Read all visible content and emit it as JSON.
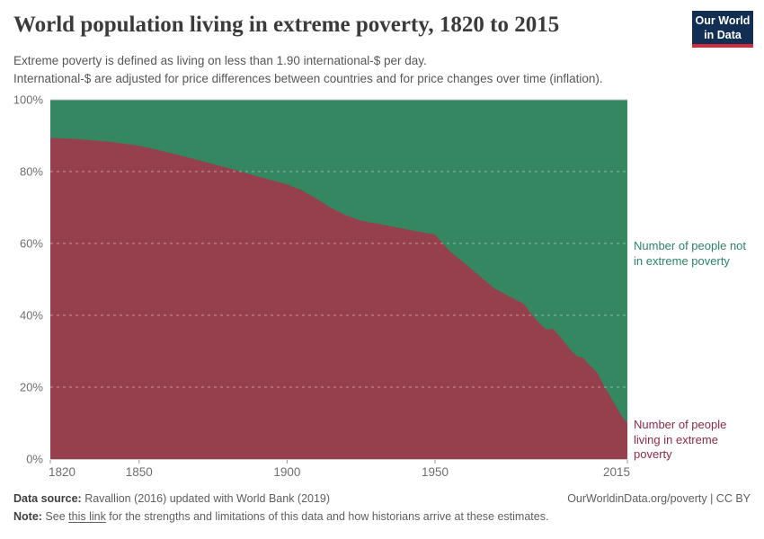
{
  "header": {
    "title": "World population living in extreme poverty, 1820 to 2015",
    "subtitle_line1": "Extreme poverty is defined as living on less than 1.90 international-$ per day.",
    "subtitle_line2": "International-$ are adjusted for price differences between countries and for price changes over time (inflation).",
    "logo_text": "Our World in Data"
  },
  "chart_data": {
    "type": "area",
    "stacked": true,
    "title": "World population living in extreme poverty, 1820 to 2015",
    "xlabel": "",
    "ylabel": "",
    "unit": "%",
    "xlim": [
      1820,
      2015
    ],
    "ylim": [
      0,
      100
    ],
    "grid": "dashed-horizontal",
    "legend_position": "right-annotations",
    "x": [
      1820,
      1830,
      1840,
      1850,
      1860,
      1870,
      1880,
      1890,
      1900,
      1905,
      1910,
      1915,
      1920,
      1925,
      1930,
      1935,
      1940,
      1945,
      1950,
      1955,
      1960,
      1965,
      1970,
      1975,
      1980,
      1982,
      1985,
      1987,
      1988,
      1990,
      1991,
      1993,
      1996,
      1998,
      2000,
      2002,
      2005,
      2007,
      2010,
      2013,
      2015
    ],
    "series": [
      {
        "name": "Number of people living in extreme poverty",
        "color": "#96404d",
        "label_color": "#8d2a45",
        "values": [
          89.4,
          89.0,
          88.3,
          87.2,
          85.3,
          83.2,
          81.0,
          78.7,
          76.4,
          74.8,
          72.4,
          69.8,
          67.8,
          66.3,
          65.6,
          64.8,
          64.0,
          63.2,
          62.5,
          57.8,
          54.5,
          51.0,
          47.5,
          45.3,
          43.2,
          41.0,
          38.0,
          36.5,
          36.0,
          36.2,
          35.2,
          33.3,
          30.2,
          28.6,
          28.2,
          26.3,
          23.8,
          20.5,
          16.3,
          12.0,
          10.0
        ]
      },
      {
        "name": "Number of people not in extreme poverty",
        "color": "#348761",
        "label_color": "#2c8465",
        "values": [
          10.6,
          11.0,
          11.7,
          12.8,
          14.7,
          16.8,
          19.0,
          21.3,
          23.6,
          25.2,
          27.6,
          30.2,
          32.2,
          33.7,
          34.4,
          35.2,
          36.0,
          36.8,
          37.5,
          42.2,
          45.5,
          49.0,
          52.5,
          54.7,
          56.8,
          59.0,
          62.0,
          63.5,
          64.0,
          63.8,
          64.8,
          66.7,
          69.8,
          71.4,
          71.8,
          73.7,
          76.2,
          79.5,
          83.7,
          88.0,
          90.0
        ]
      }
    ],
    "x_ticks": [
      {
        "value": 1820,
        "label": "1820"
      },
      {
        "value": 1850,
        "label": "1850"
      },
      {
        "value": 1900,
        "label": "1900"
      },
      {
        "value": 1950,
        "label": "1950"
      },
      {
        "value": 2015,
        "label": "2015"
      }
    ],
    "y_ticks": [
      {
        "value": 0,
        "label": "0%"
      },
      {
        "value": 20,
        "label": "20%"
      },
      {
        "value": 40,
        "label": "40%"
      },
      {
        "value": 60,
        "label": "60%"
      },
      {
        "value": 80,
        "label": "80%"
      },
      {
        "value": 100,
        "label": "100%"
      }
    ],
    "y_gridlines": [
      20,
      40,
      60,
      80
    ]
  },
  "footer": {
    "data_source_label": "Data source:",
    "data_source_text": " Ravallion (2016) updated with World Bank (2019)",
    "site_credit": "OurWorldinData.org/poverty | CC BY",
    "note_label": "Note:",
    "note_pre": " See ",
    "note_link": "this link",
    "note_post": " for the strengths and limitations of this data and how historians arrive at these estimates."
  }
}
